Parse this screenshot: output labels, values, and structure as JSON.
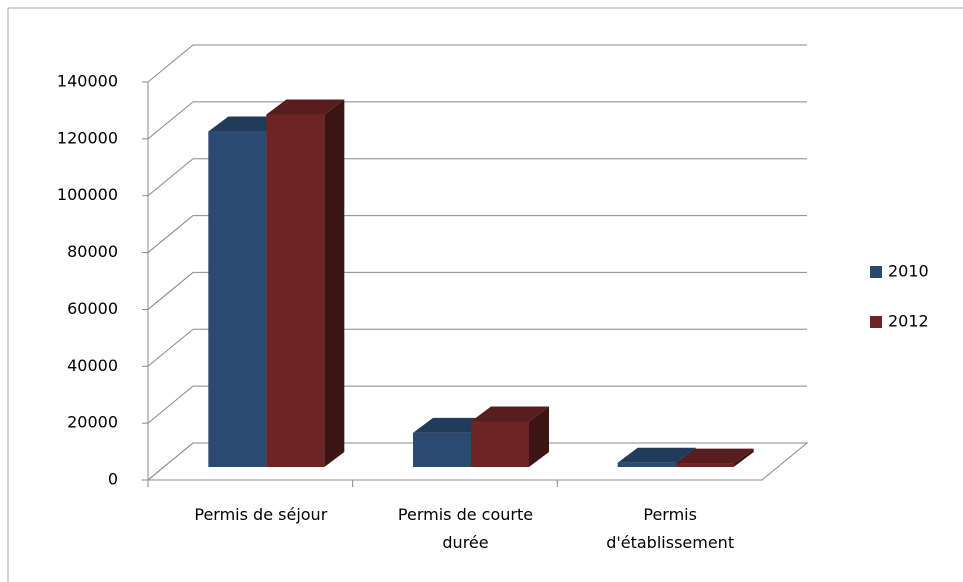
{
  "chart_data": {
    "type": "bar3d",
    "categories": [
      "Permis de séjour",
      "Permis de courte durée",
      "Permis d'établissement"
    ],
    "series": [
      {
        "name": "2010",
        "color": "#2b4a70",
        "values": [
          118000,
          12000,
          1500
        ]
      },
      {
        "name": "2012",
        "color": "#6e2424",
        "values": [
          124000,
          16000,
          1200
        ]
      }
    ],
    "ylim": [
      0,
      140000
    ],
    "yticks": [
      0,
      20000,
      40000,
      60000,
      80000,
      100000,
      120000,
      140000
    ],
    "grid": true,
    "legend": "right"
  }
}
